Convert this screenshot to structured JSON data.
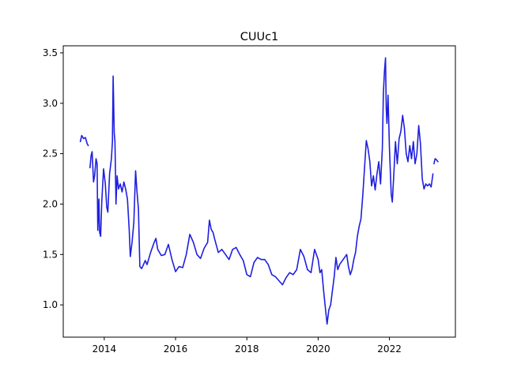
{
  "chart_data": {
    "type": "line",
    "title": "CUUc1",
    "xlabel": "",
    "ylabel": "",
    "xlim": [
      2012.85,
      2023.85
    ],
    "ylim": [
      0.68,
      3.57
    ],
    "x_ticks": [
      2014,
      2016,
      2018,
      2020,
      2022
    ],
    "x_tick_labels": [
      "2014",
      "2016",
      "2018",
      "2020",
      "2022"
    ],
    "y_ticks": [
      1.0,
      1.5,
      2.0,
      2.5,
      3.0,
      3.5
    ],
    "y_tick_labels": [
      "1.0",
      "1.5",
      "2.0",
      "2.5",
      "3.0",
      "3.5"
    ],
    "grid": false,
    "legend": "none",
    "colors": {
      "line": "#1f1fe0"
    },
    "series": [
      {
        "segments": [
          [
            [
              2013.33,
              2.62
            ],
            [
              2013.37,
              2.68
            ],
            [
              2013.42,
              2.65
            ],
            [
              2013.47,
              2.66
            ],
            [
              2013.52,
              2.6
            ],
            [
              2013.55,
              2.58
            ]
          ],
          [
            [
              2013.6,
              2.36
            ],
            [
              2013.63,
              2.48
            ],
            [
              2013.66,
              2.52
            ],
            [
              2013.7,
              2.22
            ],
            [
              2013.73,
              2.28
            ],
            [
              2013.77,
              2.45
            ],
            [
              2013.8,
              2.4
            ],
            [
              2013.82,
              1.74
            ],
            [
              2013.85,
              2.05
            ],
            [
              2013.87,
              1.72
            ],
            [
              2013.9,
              1.68
            ],
            [
              2013.93,
              2.02
            ],
            [
              2013.98,
              2.35
            ],
            [
              2014.03,
              2.2
            ],
            [
              2014.07,
              1.97
            ],
            [
              2014.1,
              1.92
            ],
            [
              2014.15,
              2.3
            ],
            [
              2014.2,
              2.45
            ],
            [
              2014.23,
              2.62
            ],
            [
              2014.25,
              3.27
            ],
            [
              2014.28,
              2.7
            ],
            [
              2014.3,
              2.62
            ],
            [
              2014.33,
              2.0
            ],
            [
              2014.36,
              2.28
            ],
            [
              2014.4,
              2.15
            ],
            [
              2014.45,
              2.2
            ],
            [
              2014.5,
              2.12
            ],
            [
              2014.55,
              2.22
            ],
            [
              2014.6,
              2.15
            ],
            [
              2014.65,
              2.05
            ],
            [
              2014.7,
              1.75
            ],
            [
              2014.73,
              1.48
            ],
            [
              2014.78,
              1.62
            ],
            [
              2014.83,
              1.82
            ],
            [
              2014.88,
              2.33
            ],
            [
              2014.92,
              2.12
            ],
            [
              2014.96,
              1.95
            ],
            [
              2015.0,
              1.38
            ],
            [
              2015.05,
              1.36
            ],
            [
              2015.1,
              1.4
            ],
            [
              2015.15,
              1.44
            ],
            [
              2015.2,
              1.4
            ],
            [
              2015.3,
              1.52
            ],
            [
              2015.4,
              1.62
            ],
            [
              2015.45,
              1.66
            ],
            [
              2015.5,
              1.55
            ],
            [
              2015.6,
              1.49
            ],
            [
              2015.7,
              1.5
            ],
            [
              2015.8,
              1.6
            ],
            [
              2015.9,
              1.45
            ],
            [
              2016.0,
              1.33
            ],
            [
              2016.1,
              1.38
            ],
            [
              2016.2,
              1.37
            ],
            [
              2016.3,
              1.5
            ],
            [
              2016.4,
              1.7
            ],
            [
              2016.5,
              1.62
            ],
            [
              2016.6,
              1.5
            ],
            [
              2016.7,
              1.46
            ],
            [
              2016.8,
              1.56
            ],
            [
              2016.9,
              1.62
            ],
            [
              2016.95,
              1.84
            ],
            [
              2017.0,
              1.75
            ],
            [
              2017.05,
              1.72
            ],
            [
              2017.1,
              1.65
            ],
            [
              2017.2,
              1.52
            ],
            [
              2017.3,
              1.55
            ],
            [
              2017.4,
              1.5
            ],
            [
              2017.5,
              1.45
            ],
            [
              2017.6,
              1.55
            ],
            [
              2017.7,
              1.57
            ],
            [
              2017.8,
              1.5
            ],
            [
              2017.9,
              1.44
            ],
            [
              2018.0,
              1.3
            ],
            [
              2018.1,
              1.28
            ],
            [
              2018.2,
              1.42
            ],
            [
              2018.3,
              1.47
            ],
            [
              2018.4,
              1.45
            ],
            [
              2018.5,
              1.45
            ],
            [
              2018.6,
              1.4
            ],
            [
              2018.7,
              1.3
            ],
            [
              2018.8,
              1.28
            ],
            [
              2018.9,
              1.24
            ],
            [
              2019.0,
              1.2
            ],
            [
              2019.1,
              1.27
            ],
            [
              2019.2,
              1.32
            ],
            [
              2019.3,
              1.3
            ],
            [
              2019.4,
              1.35
            ],
            [
              2019.5,
              1.55
            ],
            [
              2019.6,
              1.48
            ],
            [
              2019.7,
              1.35
            ],
            [
              2019.8,
              1.32
            ],
            [
              2019.9,
              1.55
            ],
            [
              2020.0,
              1.45
            ],
            [
              2020.05,
              1.32
            ],
            [
              2020.1,
              1.35
            ],
            [
              2020.15,
              1.15
            ],
            [
              2020.2,
              0.98
            ],
            [
              2020.25,
              0.81
            ],
            [
              2020.3,
              0.95
            ],
            [
              2020.35,
              1.0
            ],
            [
              2020.45,
              1.28
            ],
            [
              2020.5,
              1.47
            ],
            [
              2020.55,
              1.35
            ],
            [
              2020.6,
              1.4
            ],
            [
              2020.7,
              1.45
            ],
            [
              2020.8,
              1.5
            ],
            [
              2020.85,
              1.38
            ],
            [
              2020.9,
              1.3
            ],
            [
              2020.95,
              1.35
            ],
            [
              2021.0,
              1.45
            ],
            [
              2021.05,
              1.52
            ],
            [
              2021.1,
              1.68
            ],
            [
              2021.15,
              1.78
            ],
            [
              2021.2,
              1.85
            ],
            [
              2021.25,
              2.08
            ],
            [
              2021.3,
              2.35
            ],
            [
              2021.35,
              2.63
            ],
            [
              2021.4,
              2.55
            ],
            [
              2021.45,
              2.42
            ],
            [
              2021.5,
              2.18
            ],
            [
              2021.55,
              2.28
            ],
            [
              2021.6,
              2.14
            ],
            [
              2021.65,
              2.3
            ],
            [
              2021.7,
              2.42
            ],
            [
              2021.75,
              2.2
            ],
            [
              2021.8,
              2.55
            ],
            [
              2021.83,
              3.1
            ],
            [
              2021.86,
              3.32
            ],
            [
              2021.89,
              3.45
            ],
            [
              2021.91,
              2.95
            ],
            [
              2021.93,
              2.8
            ],
            [
              2021.96,
              3.08
            ],
            [
              2022.0,
              2.55
            ],
            [
              2022.05,
              2.1
            ],
            [
              2022.08,
              2.02
            ],
            [
              2022.12,
              2.28
            ],
            [
              2022.17,
              2.62
            ],
            [
              2022.22,
              2.4
            ],
            [
              2022.27,
              2.65
            ],
            [
              2022.32,
              2.72
            ],
            [
              2022.37,
              2.88
            ],
            [
              2022.42,
              2.75
            ],
            [
              2022.47,
              2.5
            ],
            [
              2022.52,
              2.42
            ],
            [
              2022.57,
              2.58
            ],
            [
              2022.62,
              2.45
            ],
            [
              2022.67,
              2.62
            ],
            [
              2022.72,
              2.4
            ],
            [
              2022.77,
              2.5
            ],
            [
              2022.82,
              2.78
            ],
            [
              2022.87,
              2.6
            ],
            [
              2022.92,
              2.25
            ],
            [
              2022.97,
              2.15
            ],
            [
              2023.02,
              2.2
            ],
            [
              2023.07,
              2.18
            ],
            [
              2023.12,
              2.2
            ],
            [
              2023.17,
              2.17
            ],
            [
              2023.22,
              2.3
            ]
          ],
          [
            [
              2023.25,
              2.4
            ],
            [
              2023.28,
              2.45
            ],
            [
              2023.32,
              2.44
            ],
            [
              2023.36,
              2.42
            ]
          ]
        ]
      }
    ]
  }
}
